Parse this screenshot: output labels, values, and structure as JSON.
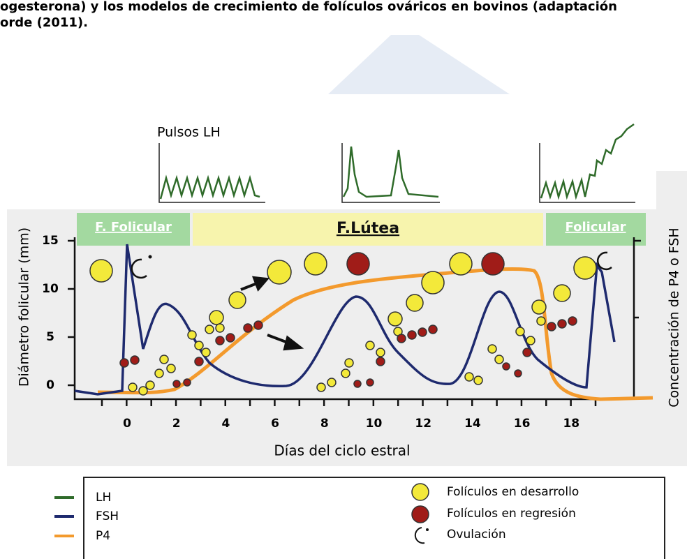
{
  "header": {
    "line1": "ogesterona) y los modelos de crecimiento de folículos ováricos en bovinos (adaptación",
    "line2": "orde (2011)."
  },
  "figure": {
    "lh_label": "Pulsos LH",
    "phases": [
      "F. Folicular",
      "F.Lútea",
      "Folicular"
    ],
    "y_axis_label": "Diámetro folicular (mm)",
    "y2_axis_label": "Concentración de P4 o FSH",
    "x_axis_label": "Días del ciclo estral",
    "y_ticks": [
      "15",
      "10",
      "5",
      "0"
    ],
    "x_ticks": [
      "0",
      "2",
      "4",
      "6",
      "8",
      "10",
      "12",
      "14",
      "16",
      "18"
    ]
  },
  "legend": {
    "lh": "LH",
    "fsh": "FSH",
    "p4": "P4",
    "developing": "Folículos en desarrollo",
    "regressing": "Folículos en regresión",
    "ovulation": "Ovulación"
  }
}
